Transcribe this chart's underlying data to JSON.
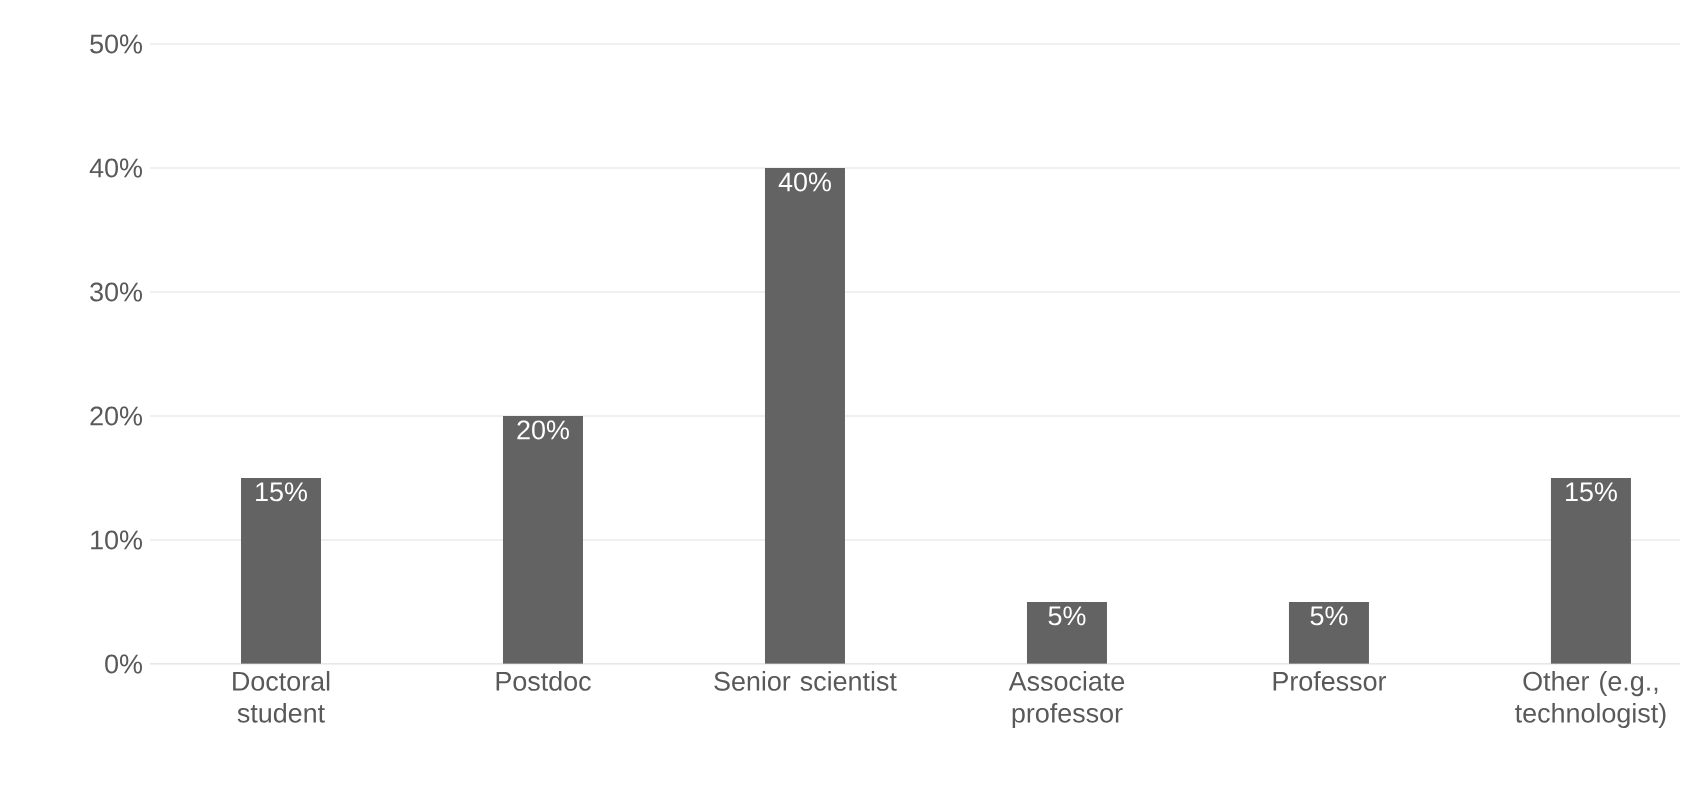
{
  "chart_data": {
    "type": "bar",
    "categories": [
      "Doctoral student",
      "Postdoc",
      "Senior scientist",
      "Associate professor",
      "Professor",
      "Other (e.g., technologist)"
    ],
    "values": [
      15,
      20,
      40,
      5,
      5,
      15
    ],
    "value_labels": [
      "15%",
      "20%",
      "40%",
      "5%",
      "5%",
      "15%"
    ],
    "color": "#636363",
    "ylim": [
      0,
      50
    ],
    "yticks": [
      {
        "value": 0,
        "label": "0%"
      },
      {
        "value": 10,
        "label": "10%"
      },
      {
        "value": 20,
        "label": "20%"
      },
      {
        "value": 30,
        "label": "30%"
      },
      {
        "value": 40,
        "label": "40%"
      },
      {
        "value": 50,
        "label": "50%"
      }
    ],
    "grid": "y"
  }
}
